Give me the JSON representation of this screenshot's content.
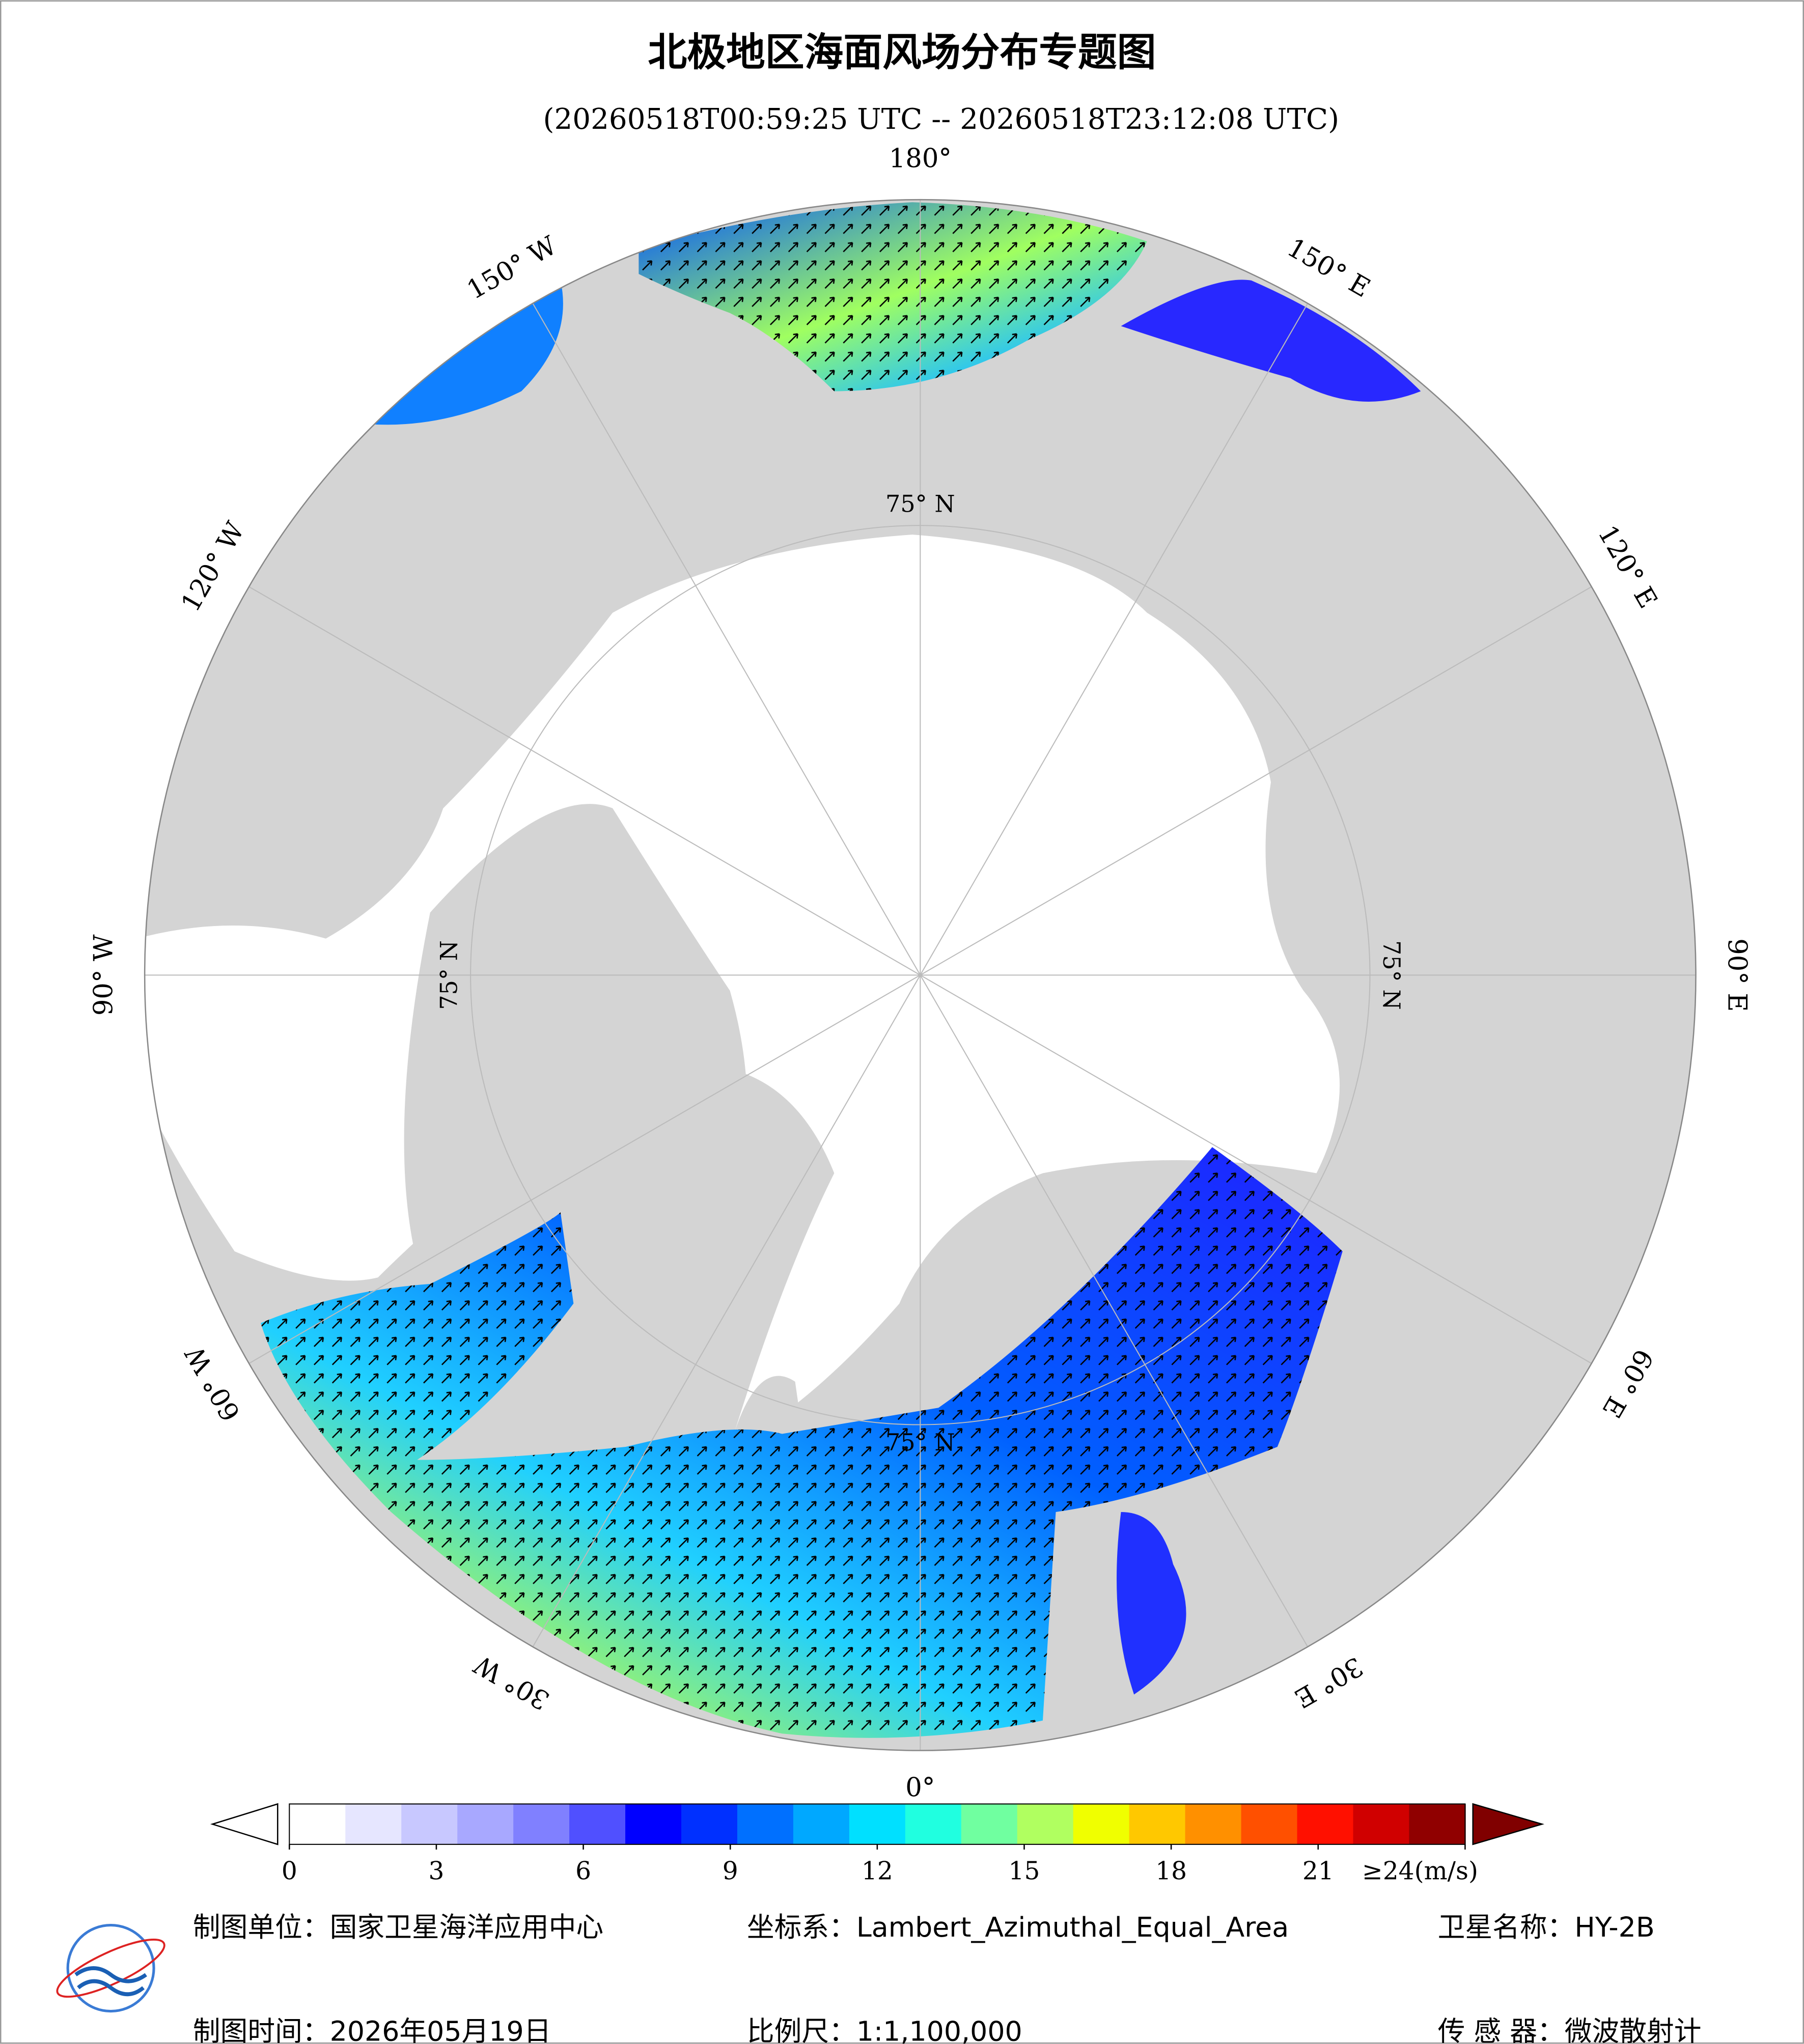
{
  "header": {
    "title": "北极地区海面风场分布专题图",
    "subtitle": "(20260518T00:59:25 UTC -- 20260518T23:12:08 UTC)"
  },
  "map": {
    "meridian_labels": [
      "180°",
      "150° E",
      "120° E",
      "90° E",
      "60° E",
      "30° E",
      "0°",
      "30° W",
      "60° W",
      "90° W",
      "120° W",
      "150° W"
    ],
    "latitude_labels": [
      "75° N",
      "75° N",
      "75° N",
      "75° N"
    ]
  },
  "colorbar": {
    "range": [
      0,
      24
    ],
    "ticks": [
      0,
      3,
      6,
      9,
      12,
      15,
      18,
      21,
      {
        "value": 24,
        "label": "≥24(m/s)"
      }
    ],
    "colors": [
      "#ffffff",
      "#e6e6ff",
      "#c8c8ff",
      "#a8a8ff",
      "#8080ff",
      "#5050ff",
      "#0000ff",
      "#0030ff",
      "#0070ff",
      "#00a8ff",
      "#00e0ff",
      "#20ffe0",
      "#70ffa0",
      "#b0ff60",
      "#f0ff00",
      "#ffc800",
      "#ff9000",
      "#ff5000",
      "#ff1000",
      "#d00000",
      "#900000"
    ],
    "under_color": "#ffffff",
    "over_color": "#800000"
  },
  "footer": {
    "unit": "制图单位：国家卫星海洋应用中心",
    "crs": "坐标系：Lambert_Azimuthal_Equal_Area",
    "satellite": "卫星名称：HY-2B",
    "date": "制图时间：2026年05月19日",
    "scale": "比例尺：1:1,100,000",
    "sensor": "传 感 器：微波散射计"
  }
}
